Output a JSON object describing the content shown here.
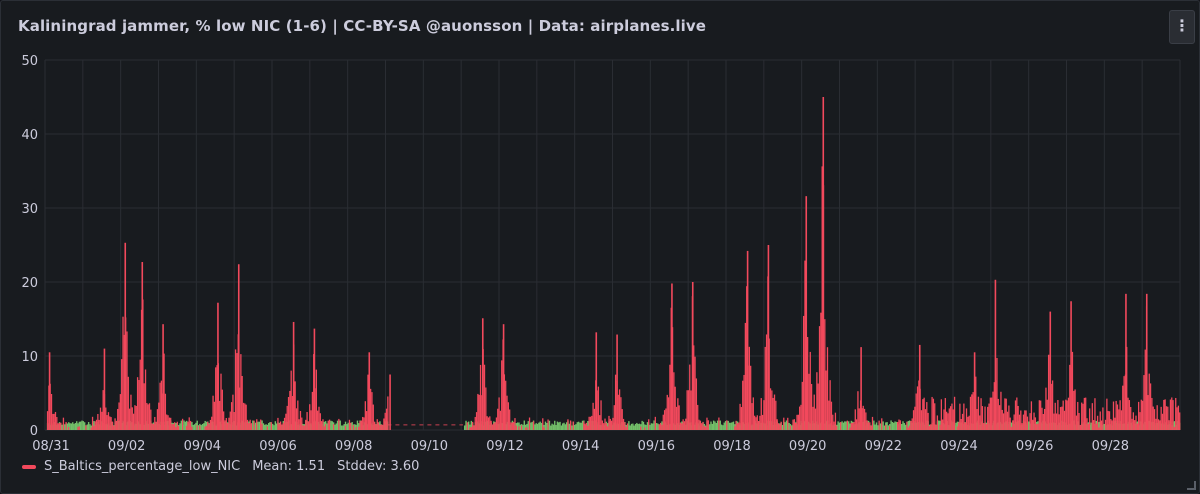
{
  "panel": {
    "title": "Kaliningrad jammer, % low NIC (1-6) | CC-BY-SA @auonsson | Data: airplanes.live",
    "menu_icon": "kebab-menu-icon",
    "menu_glyph": "⋮"
  },
  "legend": {
    "series_name": "S_Baltics_percentage_low_NIC",
    "mean_label": "Mean: 1.51",
    "stddev_label": "Stddev: 3.60",
    "color": "#f2495c"
  },
  "chart_data": {
    "type": "bar",
    "xlabel": "",
    "ylabel": "",
    "ylim": [
      0,
      50
    ],
    "y_ticks": [
      0,
      10,
      20,
      30,
      40,
      50
    ],
    "x_range": [
      "08/31",
      "09/30"
    ],
    "x_tick_labels": [
      "08/31",
      "09/02",
      "09/04",
      "09/06",
      "09/08",
      "09/10",
      "09/12",
      "09/14",
      "09/16",
      "09/18",
      "09/20",
      "09/22",
      "09/24",
      "09/26",
      "09/28"
    ],
    "grid": true,
    "colors": {
      "series": "#f2495c",
      "baseline": "#73bf69",
      "grid": "#2a2d33",
      "gap_line": "#f2495c"
    },
    "series": [
      {
        "name": "S_Baltics_percentage_low_NIC",
        "x_days_note": null,
        "peaks": [
          {
            "date": "08/31",
            "value": 10.5
          },
          {
            "date": "09/01",
            "value": 11
          },
          {
            "date": "09/02",
            "value": 25.3
          },
          {
            "date": "09/02",
            "value": 22.7
          },
          {
            "date": "09/03",
            "value": 14.3
          },
          {
            "date": "09/04",
            "value": 17.2
          },
          {
            "date": "09/05",
            "value": 22.4
          },
          {
            "date": "09/06",
            "value": 14.6
          },
          {
            "date": "09/07",
            "value": 13.7
          },
          {
            "date": "09/08",
            "value": 10.5
          },
          {
            "date": "09/09",
            "value": 7.5
          },
          {
            "date": "09/11",
            "value": 15.1
          },
          {
            "date": "09/12",
            "value": 14.3
          },
          {
            "date": "09/14",
            "value": 13.2
          },
          {
            "date": "09/15",
            "value": 12.9
          },
          {
            "date": "09/16",
            "value": 19.8
          },
          {
            "date": "09/17",
            "value": 20.0
          },
          {
            "date": "09/18",
            "value": 24.2
          },
          {
            "date": "09/19",
            "value": 25.0
          },
          {
            "date": "09/20",
            "value": 45.0
          },
          {
            "date": "09/20",
            "value": 31.6
          },
          {
            "date": "09/21",
            "value": 11.2
          },
          {
            "date": "09/23",
            "value": 11.5
          },
          {
            "date": "09/24",
            "value": 10.5
          },
          {
            "date": "09/25",
            "value": 20.3
          },
          {
            "date": "09/26",
            "value": 16.0
          },
          {
            "date": "09/27",
            "value": 17.4
          },
          {
            "date": "09/28",
            "value": 18.4
          },
          {
            "date": "09/29",
            "value": 18.4
          }
        ],
        "gap": [
          "09/09",
          "09/11"
        ]
      }
    ]
  }
}
